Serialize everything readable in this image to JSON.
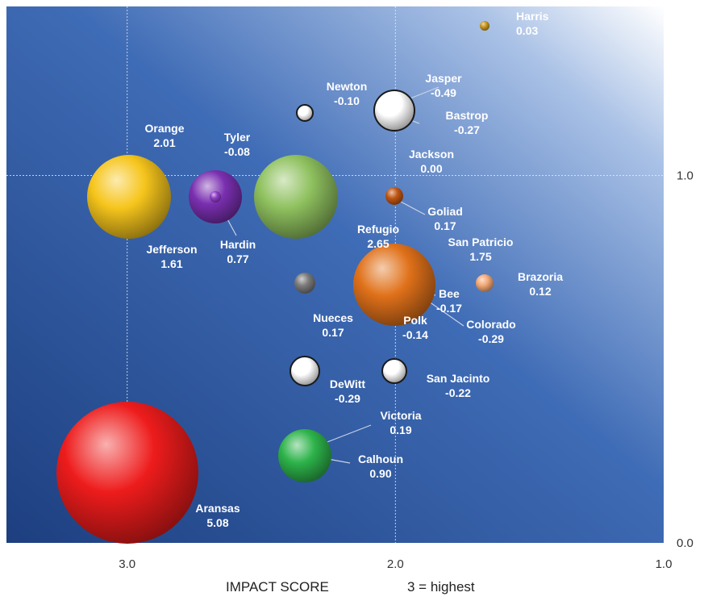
{
  "chart_data": {
    "type": "bubble",
    "xlim": [
      3.45,
      1.0
    ],
    "ylim": [
      0.0,
      1.46
    ],
    "x_ticks": [
      "3.0",
      "2.0",
      "1.0"
    ],
    "y_ticks": [
      "1.0",
      "0.0"
    ],
    "x_axis_caption": "IMPACT SCORE",
    "x_axis_note": "3 = highest",
    "grid": true,
    "colors": {
      "bg_dark": "#1d3f80",
      "bg_light": "#ffffff",
      "label": "#ffffff",
      "leader": "#c8d2e6"
    },
    "points": [
      {
        "name": "Harris",
        "value": "0.03",
        "size": 0.03,
        "x": 1.67,
        "y": 1.4,
        "color": "#c8961e"
      },
      {
        "name": "Newton",
        "value": "-0.10",
        "size": 0.1,
        "x": 2.34,
        "y": 1.28,
        "color": "#ffffff"
      },
      {
        "name": "Jasper",
        "value": "-0.49",
        "size": 0.49,
        "x": 2.0,
        "y": 1.28,
        "color": "#ffffff"
      },
      {
        "name": "Bastrop",
        "value": "-0.27",
        "size": 0.27,
        "x": 2.0,
        "y": 1.28,
        "color": "#f2f2f2"
      },
      {
        "name": "Orange",
        "value": "2.01",
        "size": 2.01,
        "x": 3.0,
        "y": 1.07,
        "color": "#f6c51c"
      },
      {
        "name": "Tyler",
        "value": "-0.08",
        "size": 0.08,
        "x": 2.67,
        "y": 1.07,
        "color": "#7a2fb0"
      },
      {
        "name": "Hardin",
        "value": "0.77",
        "size": 0.77,
        "x": 2.67,
        "y": 1.07,
        "color": "#8e3cc6"
      },
      {
        "name": "Refugio",
        "value": "2.65",
        "size": 2.65,
        "x": 2.34,
        "y": 1.07,
        "color": "#8fc15f"
      },
      {
        "name": "Jackson",
        "value": "0.00",
        "size": 0.0,
        "x": 2.0,
        "y": 1.07,
        "color": "#c85a14"
      },
      {
        "name": "Goliad",
        "value": "0.17",
        "size": 0.17,
        "x": 2.0,
        "y": 1.07,
        "color": "#c05512"
      },
      {
        "name": "Jefferson",
        "value": "1.61",
        "size": 1.61,
        "x": 3.0,
        "y": 1.07,
        "color": "#f6c51c"
      },
      {
        "name": "San Patricio",
        "value": "1.75",
        "size": 1.75,
        "x": 2.0,
        "y": 0.85,
        "color": "#e0711a"
      },
      {
        "name": "Brazoria",
        "value": "0.12",
        "size": 0.12,
        "x": 1.67,
        "y": 0.85,
        "color": "#f3a876"
      },
      {
        "name": "Nueces",
        "value": "0.17",
        "size": 0.17,
        "x": 2.34,
        "y": 0.85,
        "color": "#7a7a7a"
      },
      {
        "name": "Bee",
        "value": "-0.17",
        "size": 0.17,
        "x": 2.0,
        "y": 0.85,
        "color": "#e0711a"
      },
      {
        "name": "Polk",
        "value": "-0.14",
        "size": 0.14,
        "x": 2.0,
        "y": 0.85,
        "color": "#e0711a"
      },
      {
        "name": "Colorado",
        "value": "-0.29",
        "size": 0.29,
        "x": 2.0,
        "y": 0.85,
        "color": "#e0711a"
      },
      {
        "name": "DeWitt",
        "value": "-0.29",
        "size": 0.29,
        "x": 2.34,
        "y": 0.57,
        "color": "#ffffff"
      },
      {
        "name": "San Jacinto",
        "value": "-0.22",
        "size": 0.22,
        "x": 2.0,
        "y": 0.57,
        "color": "#ffffff"
      },
      {
        "name": "Victoria",
        "value": "0.19",
        "size": 0.19,
        "x": 2.34,
        "y": 0.32,
        "color": "#2db34a"
      },
      {
        "name": "Calhoun",
        "value": "0.90",
        "size": 0.9,
        "x": 2.34,
        "y": 0.32,
        "color": "#2db34a"
      },
      {
        "name": "Aransas",
        "value": "5.08",
        "size": 5.08,
        "x": 3.0,
        "y": 0.32,
        "color": "#ee1c1c"
      }
    ]
  }
}
